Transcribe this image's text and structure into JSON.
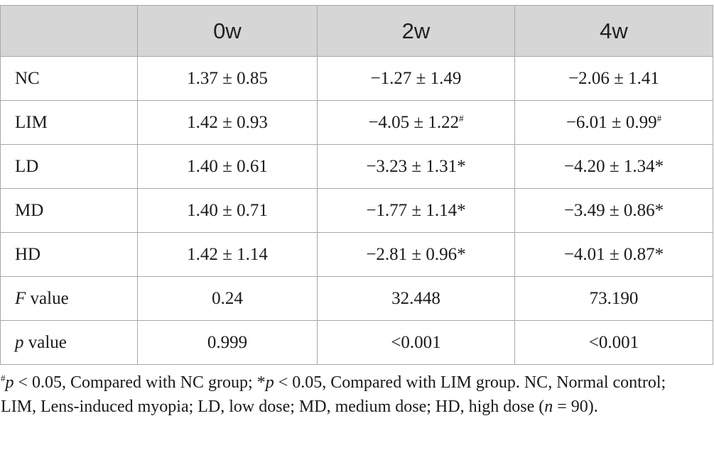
{
  "table": {
    "header": [
      "",
      "0w",
      "2w",
      "4w"
    ],
    "rows": [
      {
        "label": "NC",
        "cells": [
          {
            "value": "1.37 ± 0.85",
            "mark": ""
          },
          {
            "value": "−1.27 ± 1.49",
            "mark": ""
          },
          {
            "value": "−2.06 ± 1.41",
            "mark": ""
          }
        ]
      },
      {
        "label": "LIM",
        "cells": [
          {
            "value": "1.42 ± 0.93",
            "mark": ""
          },
          {
            "value": "−4.05 ± 1.22",
            "mark": "#"
          },
          {
            "value": "−6.01 ± 0.99",
            "mark": "#"
          }
        ]
      },
      {
        "label": "LD",
        "cells": [
          {
            "value": "1.40 ± 0.61",
            "mark": ""
          },
          {
            "value": "−3.23 ± 1.31*",
            "mark": ""
          },
          {
            "value": "−4.20 ± 1.34*",
            "mark": ""
          }
        ]
      },
      {
        "label": "MD",
        "cells": [
          {
            "value": "1.40 ± 0.71",
            "mark": ""
          },
          {
            "value": "−1.77 ± 1.14*",
            "mark": ""
          },
          {
            "value": "−3.49 ± 0.86*",
            "mark": ""
          }
        ]
      },
      {
        "label": "HD",
        "cells": [
          {
            "value": "1.42 ± 1.14",
            "mark": ""
          },
          {
            "value": "−2.81 ± 0.96*",
            "mark": ""
          },
          {
            "value": "−4.01 ± 0.87*",
            "mark": ""
          }
        ]
      },
      {
        "label_italic": "F",
        "label_rest": " value",
        "cells": [
          {
            "value": "0.24",
            "mark": ""
          },
          {
            "value": "32.448",
            "mark": ""
          },
          {
            "value": "73.190",
            "mark": ""
          }
        ]
      },
      {
        "label_italic": "p",
        "label_rest": " value",
        "cells": [
          {
            "value": "0.999",
            "mark": ""
          },
          {
            "value": "<0.001",
            "mark": ""
          },
          {
            "value": "<0.001",
            "mark": ""
          }
        ]
      }
    ]
  },
  "footnote": {
    "mark1": "#",
    "p_symbol": "p",
    "part1": " < 0.05, Compared with NC group; *",
    "part2": " < 0.05, Compared with LIM group. NC, Normal control; LIM, Lens-induced myopia; LD, low dose; MD, medium dose; HD, high dose (",
    "n_symbol": "n",
    "part3": " = 90)."
  }
}
